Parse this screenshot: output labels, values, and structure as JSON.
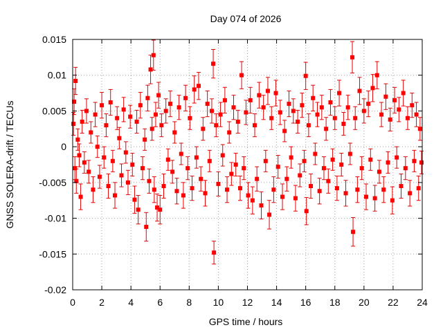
{
  "chart_data": {
    "type": "scatter",
    "title": "Day 074 of 2026",
    "xlabel": "GPS time / hours",
    "ylabel": "GNSS SOLERA-drift / TECUs",
    "xlim": [
      0,
      24
    ],
    "ylim": [
      -0.02,
      0.015
    ],
    "x_ticks": [
      0,
      2,
      4,
      6,
      8,
      10,
      12,
      14,
      16,
      18,
      20,
      22,
      24
    ],
    "x_tick_labels": [
      "0",
      "2",
      "4",
      "6",
      "8",
      "10",
      "12",
      "14",
      "16",
      "18",
      "20",
      "22",
      "24"
    ],
    "y_ticks": [
      -0.02,
      -0.015,
      -0.01,
      -0.005,
      0,
      0.005,
      0.01,
      0.015
    ],
    "y_tick_labels": [
      "-0.02",
      "-0.015",
      "-0.01",
      "-0.005",
      "0",
      "0.005",
      "0.01",
      "0.015"
    ],
    "grid": true,
    "marker_color": "#ff0000",
    "errorbar_color": "#e00000",
    "series": [
      {
        "points": [
          [
            0.05,
            0.0032,
            0.0016
          ],
          [
            0.1,
            0.0063,
            0.0018
          ],
          [
            0.15,
            -0.003,
            0.0016
          ],
          [
            0.2,
            0.0092,
            0.0019
          ],
          [
            0.25,
            -0.0048,
            0.0017
          ],
          [
            0.35,
            0.001,
            0.0015
          ],
          [
            0.45,
            -0.0012,
            0.0016
          ],
          [
            0.55,
            -0.007,
            0.0018
          ],
          [
            0.65,
            0.0035,
            0.0016
          ],
          [
            0.8,
            -0.0022,
            0.0015
          ],
          [
            0.95,
            0.005,
            0.0017
          ],
          [
            1.1,
            -0.0035,
            0.0016
          ],
          [
            1.25,
            0.002,
            0.0015
          ],
          [
            1.4,
            -0.006,
            0.0018
          ],
          [
            1.55,
            0.0045,
            0.0017
          ],
          [
            1.7,
            0.0,
            0.0015
          ],
          [
            1.85,
            -0.0042,
            0.0016
          ],
          [
            2.0,
            0.0058,
            0.0018
          ],
          [
            2.15,
            -0.0015,
            0.0015
          ],
          [
            2.3,
            0.003,
            0.0016
          ],
          [
            2.45,
            -0.0055,
            0.0017
          ],
          [
            2.6,
            0.0062,
            0.0018
          ],
          [
            2.75,
            -0.002,
            0.0015
          ],
          [
            2.9,
            -0.0068,
            0.0018
          ],
          [
            3.05,
            0.004,
            0.0016
          ],
          [
            3.2,
            0.0012,
            0.0015
          ],
          [
            3.35,
            -0.004,
            0.0016
          ],
          [
            3.5,
            0.0052,
            0.0017
          ],
          [
            3.65,
            -0.0008,
            0.0015
          ],
          [
            3.8,
            -0.005,
            0.0017
          ],
          [
            3.95,
            0.0042,
            0.0016
          ],
          [
            4.1,
            -0.0025,
            0.0016
          ],
          [
            4.25,
            -0.0074,
            0.0019
          ],
          [
            4.4,
            0.0035,
            0.0016
          ],
          [
            4.5,
            -0.0088,
            0.002
          ],
          [
            4.65,
            0.0058,
            0.0018
          ],
          [
            4.8,
            -0.003,
            0.0016
          ],
          [
            4.95,
            0.001,
            0.0015
          ],
          [
            5.05,
            -0.0112,
            0.002
          ],
          [
            5.15,
            0.0068,
            0.0018
          ],
          [
            5.25,
            -0.0048,
            0.0017
          ],
          [
            5.35,
            0.0108,
            0.002
          ],
          [
            5.45,
            0.0025,
            0.0016
          ],
          [
            5.55,
            0.0128,
            0.0021
          ],
          [
            5.6,
            -0.006,
            0.0018
          ],
          [
            5.7,
            0.0045,
            0.0017
          ],
          [
            5.8,
            -0.0085,
            0.0019
          ],
          [
            5.9,
            0.0072,
            0.0018
          ],
          [
            6.0,
            -0.0088,
            0.002
          ],
          [
            6.1,
            0.003,
            0.0016
          ],
          [
            6.25,
            -0.0055,
            0.0017
          ],
          [
            6.4,
            0.005,
            0.0017
          ],
          [
            6.55,
            -0.0018,
            0.0015
          ],
          [
            6.7,
            0.006,
            0.0018
          ],
          [
            6.85,
            -0.0035,
            0.0016
          ],
          [
            7.0,
            0.002,
            0.0015
          ],
          [
            7.15,
            -0.0062,
            0.0018
          ],
          [
            7.3,
            0.0055,
            0.0017
          ],
          [
            7.45,
            -0.001,
            0.0015
          ],
          [
            7.6,
            -0.0068,
            0.0018
          ],
          [
            7.75,
            0.0068,
            0.0018
          ],
          [
            7.9,
            -0.003,
            0.0016
          ],
          [
            8.05,
            0.004,
            0.0016
          ],
          [
            8.2,
            -0.0058,
            0.0017
          ],
          [
            8.35,
            0.008,
            0.0019
          ],
          [
            8.5,
            -0.0015,
            0.0015
          ],
          [
            8.65,
            0.0085,
            0.0019
          ],
          [
            8.8,
            -0.0045,
            0.0017
          ],
          [
            8.95,
            0.0025,
            0.0016
          ],
          [
            9.1,
            -0.0065,
            0.0018
          ],
          [
            9.25,
            0.006,
            0.0018
          ],
          [
            9.4,
            -0.002,
            0.0015
          ],
          [
            9.55,
            0.005,
            0.0017
          ],
          [
            9.65,
            0.0116,
            0.002
          ],
          [
            9.7,
            -0.0148,
            0.0016
          ],
          [
            9.85,
            0.003,
            0.0016
          ],
          [
            10.0,
            -0.0052,
            0.0017
          ],
          [
            10.15,
            0.0045,
            0.0017
          ],
          [
            10.3,
            -0.0012,
            0.0015
          ],
          [
            10.45,
            0.0065,
            0.0018
          ],
          [
            10.6,
            -0.006,
            0.0018
          ],
          [
            10.75,
            0.002,
            0.0015
          ],
          [
            10.9,
            -0.0038,
            0.0016
          ],
          [
            11.05,
            0.0055,
            0.0017
          ],
          [
            11.2,
            -0.0025,
            0.0016
          ],
          [
            11.35,
            0.0035,
            0.0016
          ],
          [
            11.5,
            -0.0058,
            0.0017
          ],
          [
            11.6,
            0.01,
            0.0019
          ],
          [
            11.75,
            -0.003,
            0.0016
          ],
          [
            11.9,
            0.0048,
            0.0017
          ],
          [
            12.05,
            -0.0068,
            0.0018
          ],
          [
            12.2,
            0.0065,
            0.0018
          ],
          [
            12.35,
            -0.0075,
            0.0019
          ],
          [
            12.5,
            0.003,
            0.0016
          ],
          [
            12.65,
            -0.0045,
            0.0017
          ],
          [
            12.8,
            0.0072,
            0.0018
          ],
          [
            12.95,
            -0.0082,
            0.0019
          ],
          [
            13.1,
            0.0055,
            0.0017
          ],
          [
            13.25,
            -0.002,
            0.0015
          ],
          [
            13.4,
            0.0078,
            0.0019
          ],
          [
            13.5,
            -0.0095,
            0.002
          ],
          [
            13.65,
            0.004,
            0.0016
          ],
          [
            13.8,
            -0.006,
            0.0018
          ],
          [
            13.95,
            0.0075,
            0.0018
          ],
          [
            14.1,
            -0.0028,
            0.0016
          ],
          [
            14.25,
            0.0048,
            0.0017
          ],
          [
            14.4,
            -0.007,
            0.0018
          ],
          [
            14.55,
            0.0022,
            0.0015
          ],
          [
            14.7,
            -0.0045,
            0.0017
          ],
          [
            14.85,
            0.006,
            0.0018
          ],
          [
            15.0,
            -0.0015,
            0.0015
          ],
          [
            15.15,
            0.005,
            0.0017
          ],
          [
            15.3,
            -0.0072,
            0.0018
          ],
          [
            15.45,
            0.0035,
            0.0016
          ],
          [
            15.6,
            -0.004,
            0.0016
          ],
          [
            15.75,
            0.0058,
            0.0017
          ],
          [
            15.9,
            -0.002,
            0.0015
          ],
          [
            16.0,
            0.0099,
            0.0019
          ],
          [
            16.05,
            -0.009,
            0.0019
          ],
          [
            16.2,
            0.003,
            0.0016
          ],
          [
            16.35,
            -0.0055,
            0.0017
          ],
          [
            16.5,
            0.0068,
            0.0018
          ],
          [
            16.65,
            -0.001,
            0.0015
          ],
          [
            16.8,
            0.0045,
            0.0017
          ],
          [
            16.95,
            -0.0062,
            0.0018
          ],
          [
            17.1,
            0.0055,
            0.0017
          ],
          [
            17.25,
            -0.003,
            0.0016
          ],
          [
            17.4,
            0.0025,
            0.0016
          ],
          [
            17.55,
            -0.0048,
            0.0017
          ],
          [
            17.7,
            0.0062,
            0.0018
          ],
          [
            17.85,
            -0.0018,
            0.0015
          ],
          [
            18.0,
            0.004,
            0.0016
          ],
          [
            18.15,
            -0.0058,
            0.0017
          ],
          [
            18.3,
            0.0075,
            0.0018
          ],
          [
            18.45,
            -0.0025,
            0.0016
          ],
          [
            18.6,
            0.0032,
            0.0016
          ],
          [
            18.75,
            -0.0065,
            0.0018
          ],
          [
            18.9,
            0.0055,
            0.0017
          ],
          [
            19.05,
            -0.001,
            0.0015
          ],
          [
            19.2,
            0.0125,
            0.0022
          ],
          [
            19.25,
            -0.0119,
            0.002
          ],
          [
            19.4,
            0.004,
            0.0016
          ],
          [
            19.55,
            -0.006,
            0.0018
          ],
          [
            19.7,
            0.0078,
            0.0019
          ],
          [
            19.85,
            -0.003,
            0.0016
          ],
          [
            20.0,
            0.005,
            0.0017
          ],
          [
            20.15,
            -0.007,
            0.0018
          ],
          [
            20.3,
            0.006,
            0.0018
          ],
          [
            20.45,
            -0.0018,
            0.0015
          ],
          [
            20.6,
            0.0082,
            0.0019
          ],
          [
            20.75,
            -0.0072,
            0.0018
          ],
          [
            20.9,
            0.01,
            0.0019
          ],
          [
            21.05,
            -0.0035,
            0.0016
          ],
          [
            21.2,
            0.0045,
            0.0017
          ],
          [
            21.35,
            -0.006,
            0.0018
          ],
          [
            21.5,
            0.007,
            0.0018
          ],
          [
            21.65,
            -0.0022,
            0.0015
          ],
          [
            21.8,
            0.0038,
            0.0016
          ],
          [
            21.95,
            -0.0075,
            0.0019
          ],
          [
            22.1,
            0.0065,
            0.0018
          ],
          [
            22.25,
            -0.0015,
            0.0015
          ],
          [
            22.4,
            0.0052,
            0.0017
          ],
          [
            22.55,
            -0.0055,
            0.0017
          ],
          [
            22.7,
            0.0075,
            0.0018
          ],
          [
            22.85,
            -0.003,
            0.0016
          ],
          [
            23.0,
            0.004,
            0.0016
          ],
          [
            23.15,
            -0.0065,
            0.0018
          ],
          [
            23.3,
            0.0058,
            0.0017
          ],
          [
            23.45,
            -0.002,
            0.0015
          ],
          [
            23.6,
            0.0045,
            0.0017
          ],
          [
            23.75,
            -0.0058,
            0.0017
          ],
          [
            23.85,
            0.0025,
            0.0016
          ],
          [
            23.95,
            -0.0022,
            0.0016
          ]
        ]
      }
    ]
  }
}
